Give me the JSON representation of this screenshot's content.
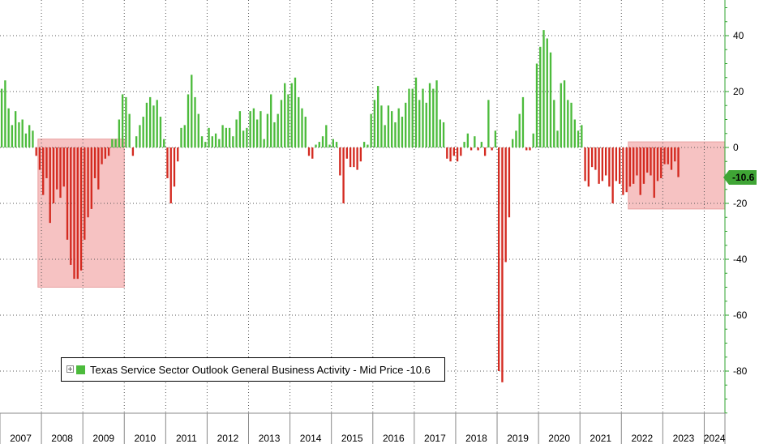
{
  "chart_data": {
    "type": "bar",
    "title": "",
    "xlabel": "",
    "ylabel": "",
    "series": [
      {
        "name": "Texas Service Sector Outlook General Business Activity - Mid Price",
        "start": "2007-01",
        "values": [
          21,
          24,
          14,
          8,
          13,
          9,
          10,
          5,
          8,
          6,
          -3,
          -8,
          -17,
          -11,
          -27,
          -20,
          -15,
          -18,
          -14,
          -33,
          -42,
          -47,
          -47,
          -44,
          -33,
          -25,
          -22,
          -11,
          -15,
          -6,
          -4,
          -3,
          3,
          3,
          10,
          19,
          18,
          12,
          -3,
          4,
          8,
          11,
          16,
          18,
          15,
          17,
          11,
          3,
          -11,
          -20,
          -14,
          -5,
          7,
          8,
          19,
          26,
          18,
          12,
          4,
          2,
          7,
          4,
          5,
          3,
          8,
          7,
          7,
          4,
          10,
          13,
          6,
          7,
          13,
          14,
          10,
          13,
          3,
          12,
          19,
          9,
          12,
          17,
          23,
          19,
          23,
          25,
          18,
          14,
          11,
          -3,
          -4,
          1,
          2,
          4,
          8,
          1,
          3,
          2,
          -10,
          -20,
          -4,
          -7,
          -7,
          -8,
          -5,
          2,
          1,
          12,
          17,
          22,
          15,
          8,
          15,
          13,
          9,
          14,
          11,
          16,
          21,
          21,
          25,
          17,
          21,
          16,
          23,
          21,
          24,
          10,
          9,
          -4,
          -5,
          -3,
          -5,
          -3,
          2,
          5,
          -1,
          4,
          -1,
          2,
          -3,
          17,
          -1,
          6,
          -80,
          -84,
          -41,
          -25,
          3,
          6,
          12,
          18,
          -1,
          -1,
          5,
          30,
          36,
          42,
          39,
          34,
          17,
          6,
          23,
          24,
          17,
          16,
          10,
          6,
          8,
          -12,
          -14,
          -7,
          -8,
          -13,
          -12,
          -10,
          -14,
          -20,
          -12,
          -13,
          -17,
          -16,
          -14,
          -13,
          -10,
          -17,
          -13,
          -9,
          -10,
          -18,
          -12,
          -11,
          -6,
          -6,
          -8,
          -5,
          -10.6
        ]
      }
    ],
    "x_tick_labels": [
      "2007",
      "2008",
      "2009",
      "2010",
      "2011",
      "2012",
      "2013",
      "2014",
      "2015",
      "2016",
      "2017",
      "2018",
      "2019",
      "2020",
      "2021",
      "2022",
      "2023",
      "2024"
    ],
    "y_ticks": [
      40,
      20,
      0,
      -20,
      -40,
      -60,
      -80
    ],
    "ylim": [
      -97,
      52
    ],
    "xlim": [
      "2007-01",
      "2024-07"
    ],
    "grid": true,
    "legend_placement": "bottom-left",
    "last_value_label": "-10.6",
    "highlight_ranges": [
      {
        "from": "2007-12",
        "to": "2009-12",
        "y_from": -50,
        "y_to": 3
      },
      {
        "from": "2022-03",
        "to": "2024-06",
        "y_from": -22,
        "y_to": 2
      }
    ],
    "colors": {
      "positive": "#4cbb3c",
      "negative": "#d42a20",
      "highlight": "#f5b7b7",
      "axis": "#2ea32e",
      "grid": "#555555",
      "last_tag": "#3fa535"
    }
  },
  "legend": {
    "label": "Texas Service Sector Outlook General Business Activity - Mid Price -10.6"
  }
}
